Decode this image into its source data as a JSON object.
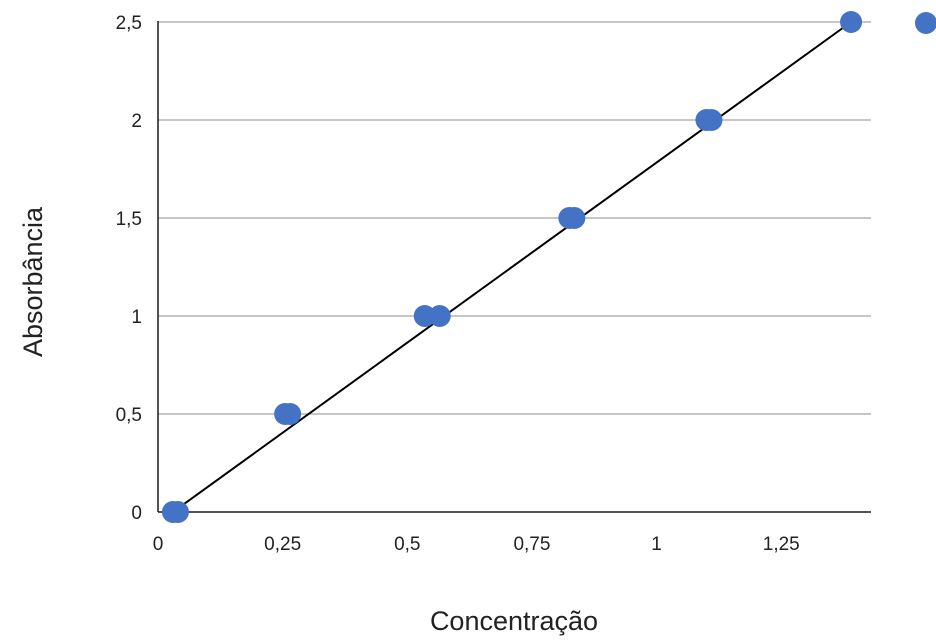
{
  "chart_data": {
    "type": "scatter",
    "title": "",
    "xlabel": "Concentração",
    "ylabel": "Absorbância",
    "xlim": [
      0,
      1.43
    ],
    "ylim": [
      0,
      2.5
    ],
    "x_ticks": [
      "0",
      "0,25",
      "0,5",
      "0,75",
      "1",
      "1,25"
    ],
    "x_tick_values": [
      0,
      0.25,
      0.5,
      0.75,
      1,
      1.25
    ],
    "y_ticks": [
      "0",
      "0,5",
      "1",
      "1,5",
      "2",
      "2,5"
    ],
    "y_tick_values": [
      0,
      0.5,
      1,
      1.5,
      2,
      2.5
    ],
    "grid": "horizontal",
    "legend": "top-right",
    "series": [
      {
        "color": "#4472C4",
        "points": [
          {
            "x": 0.03,
            "y": 0
          },
          {
            "x": 0.04,
            "y": 0
          },
          {
            "x": 0.255,
            "y": 0.5
          },
          {
            "x": 0.265,
            "y": 0.5
          },
          {
            "x": 0.535,
            "y": 1
          },
          {
            "x": 0.565,
            "y": 1
          },
          {
            "x": 0.825,
            "y": 1.5
          },
          {
            "x": 0.835,
            "y": 1.5
          },
          {
            "x": 1.1,
            "y": 2
          },
          {
            "x": 1.11,
            "y": 2
          },
          {
            "x": 1.39,
            "y": 2.5
          }
        ]
      }
    ],
    "trendline": {
      "x": [
        0.03,
        1.39
      ],
      "y": [
        0,
        2.5
      ],
      "color": "#000000"
    }
  }
}
